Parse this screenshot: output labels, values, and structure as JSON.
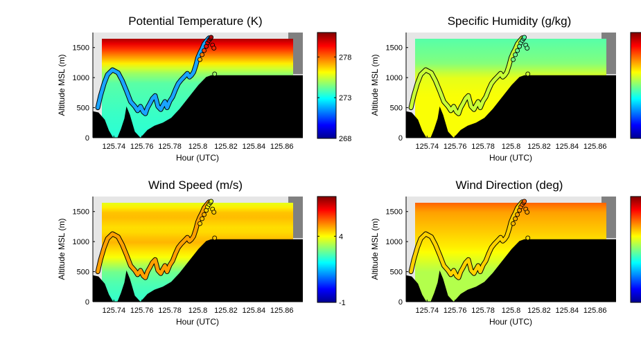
{
  "chart_data": [
    {
      "type": "heatmap",
      "title": "Potential Temperature (K)",
      "xlabel": "Hour (UTC)",
      "ylabel": "Altitude MSL (m)",
      "x_ticks": [
        "125.74",
        "125.76",
        "125.78",
        "125.8",
        "125.82",
        "125.84",
        "125.86"
      ],
      "y_ticks": [
        "0",
        "500",
        "1000",
        "1500"
      ],
      "xlim": [
        125.725,
        125.875
      ],
      "ylim": [
        0,
        1750
      ],
      "colorbar": {
        "min": 268,
        "max": 281,
        "ticks": [
          "268",
          "273",
          "278"
        ]
      },
      "field_profile": [
        [
          0,
          273.4
        ],
        [
          400,
          273.6
        ],
        [
          900,
          274.0
        ],
        [
          1100,
          275.0
        ],
        [
          1300,
          277.0
        ],
        [
          1450,
          278.5
        ],
        [
          1650,
          280.5
        ]
      ]
    },
    {
      "type": "heatmap",
      "title": "Specific Humidity (g/kg)",
      "xlabel": "Hour (UTC)",
      "ylabel": "Altitude MSL (m)",
      "x_ticks": [
        "125.74",
        "125.76",
        "125.78",
        "125.8",
        "125.82",
        "125.84",
        "125.86"
      ],
      "y_ticks": [
        "0",
        "500",
        "1000",
        "1500"
      ],
      "xlim": [
        125.725,
        125.875
      ],
      "ylim": [
        0,
        1750
      ],
      "colorbar": {
        "min": 0,
        "max": 1,
        "ticks": []
      },
      "field_profile": [
        [
          0,
          0.62
        ],
        [
          700,
          0.62
        ],
        [
          1000,
          0.6
        ],
        [
          1250,
          0.5
        ],
        [
          1650,
          0.46
        ]
      ]
    },
    {
      "type": "heatmap",
      "title": "Wind Speed (m/s)",
      "xlabel": "Hour (UTC)",
      "ylabel": "Altitude MSL (m)",
      "x_ticks": [
        "125.74",
        "125.76",
        "125.78",
        "125.8",
        "125.82",
        "125.84",
        "125.86"
      ],
      "y_ticks": [
        "0",
        "500",
        "1000",
        "1500"
      ],
      "xlim": [
        125.725,
        125.875
      ],
      "ylim": [
        0,
        1750
      ],
      "colorbar": {
        "min": -1,
        "max": 7,
        "ticks": [
          "-1",
          "4"
        ]
      },
      "field_profile": [
        [
          0,
          2.4
        ],
        [
          300,
          2.6
        ],
        [
          500,
          2.9
        ],
        [
          750,
          4.0
        ],
        [
          1000,
          4.6
        ],
        [
          1200,
          4.2
        ],
        [
          1450,
          4.6
        ],
        [
          1650,
          3.8
        ]
      ]
    },
    {
      "type": "heatmap",
      "title": "Wind Direction (deg)",
      "xlabel": "Hour (UTC)",
      "ylabel": "Altitude MSL (m)",
      "x_ticks": [
        "125.74",
        "125.76",
        "125.78",
        "125.8",
        "125.82",
        "125.84",
        "125.86"
      ],
      "y_ticks": [
        "0",
        "500",
        "1000",
        "1500"
      ],
      "xlim": [
        125.725,
        125.875
      ],
      "ylim": [
        0,
        1750
      ],
      "colorbar": {
        "min": 0,
        "max": 1,
        "ticks": []
      },
      "field_profile": [
        [
          0,
          0.55
        ],
        [
          500,
          0.55
        ],
        [
          900,
          0.64
        ],
        [
          1200,
          0.68
        ],
        [
          1500,
          0.72
        ],
        [
          1650,
          0.78
        ]
      ]
    }
  ],
  "flight_track": {
    "x": [
      125.7285,
      125.7305,
      125.733,
      125.7355,
      125.739,
      125.743,
      125.746,
      125.749,
      125.752,
      125.755,
      125.757,
      125.759,
      125.761,
      125.7625,
      125.764,
      125.7655,
      125.7675,
      125.7695,
      125.7715,
      125.7735,
      125.775,
      125.7765,
      125.778,
      125.78,
      125.782,
      125.784,
      125.786,
      125.788,
      125.7905,
      125.7925,
      125.794,
      125.7955,
      125.797,
      125.7985,
      125.8,
      125.8015,
      125.803,
      125.8045,
      125.8065,
      125.808
    ],
    "y": [
      500,
      700,
      900,
      1050,
      1130,
      1080,
      950,
      780,
      600,
      520,
      450,
      520,
      430,
      400,
      500,
      560,
      650,
      700,
      520,
      470,
      540,
      600,
      500,
      610,
      680,
      800,
      900,
      960,
      1020,
      1070,
      1010,
      1040,
      1090,
      1200,
      1330,
      1410,
      1480,
      1560,
      1620,
      1660
    ]
  },
  "markers": {
    "x": [
      125.8015,
      125.803,
      125.8045,
      125.806,
      125.807,
      125.808,
      125.809,
      125.8095,
      125.8105,
      125.8115,
      125.812
    ],
    "y": [
      1300,
      1380,
      1450,
      1520,
      1580,
      1620,
      1650,
      1670,
      1540,
      1490,
      1060
    ]
  },
  "terrain": {
    "x": [
      125.725,
      125.729,
      125.7335,
      125.7365,
      125.7395,
      125.7425,
      125.745,
      125.7475,
      125.749,
      125.7515,
      125.755,
      125.759,
      125.764,
      125.769,
      125.775,
      125.781,
      125.787,
      125.793,
      125.8005,
      125.806,
      125.8095,
      125.875
    ],
    "y": [
      440,
      420,
      300,
      120,
      0,
      0,
      140,
      320,
      520,
      380,
      100,
      0,
      130,
      200,
      250,
      330,
      480,
      660,
      880,
      1010,
      1040,
      1040
    ]
  }
}
